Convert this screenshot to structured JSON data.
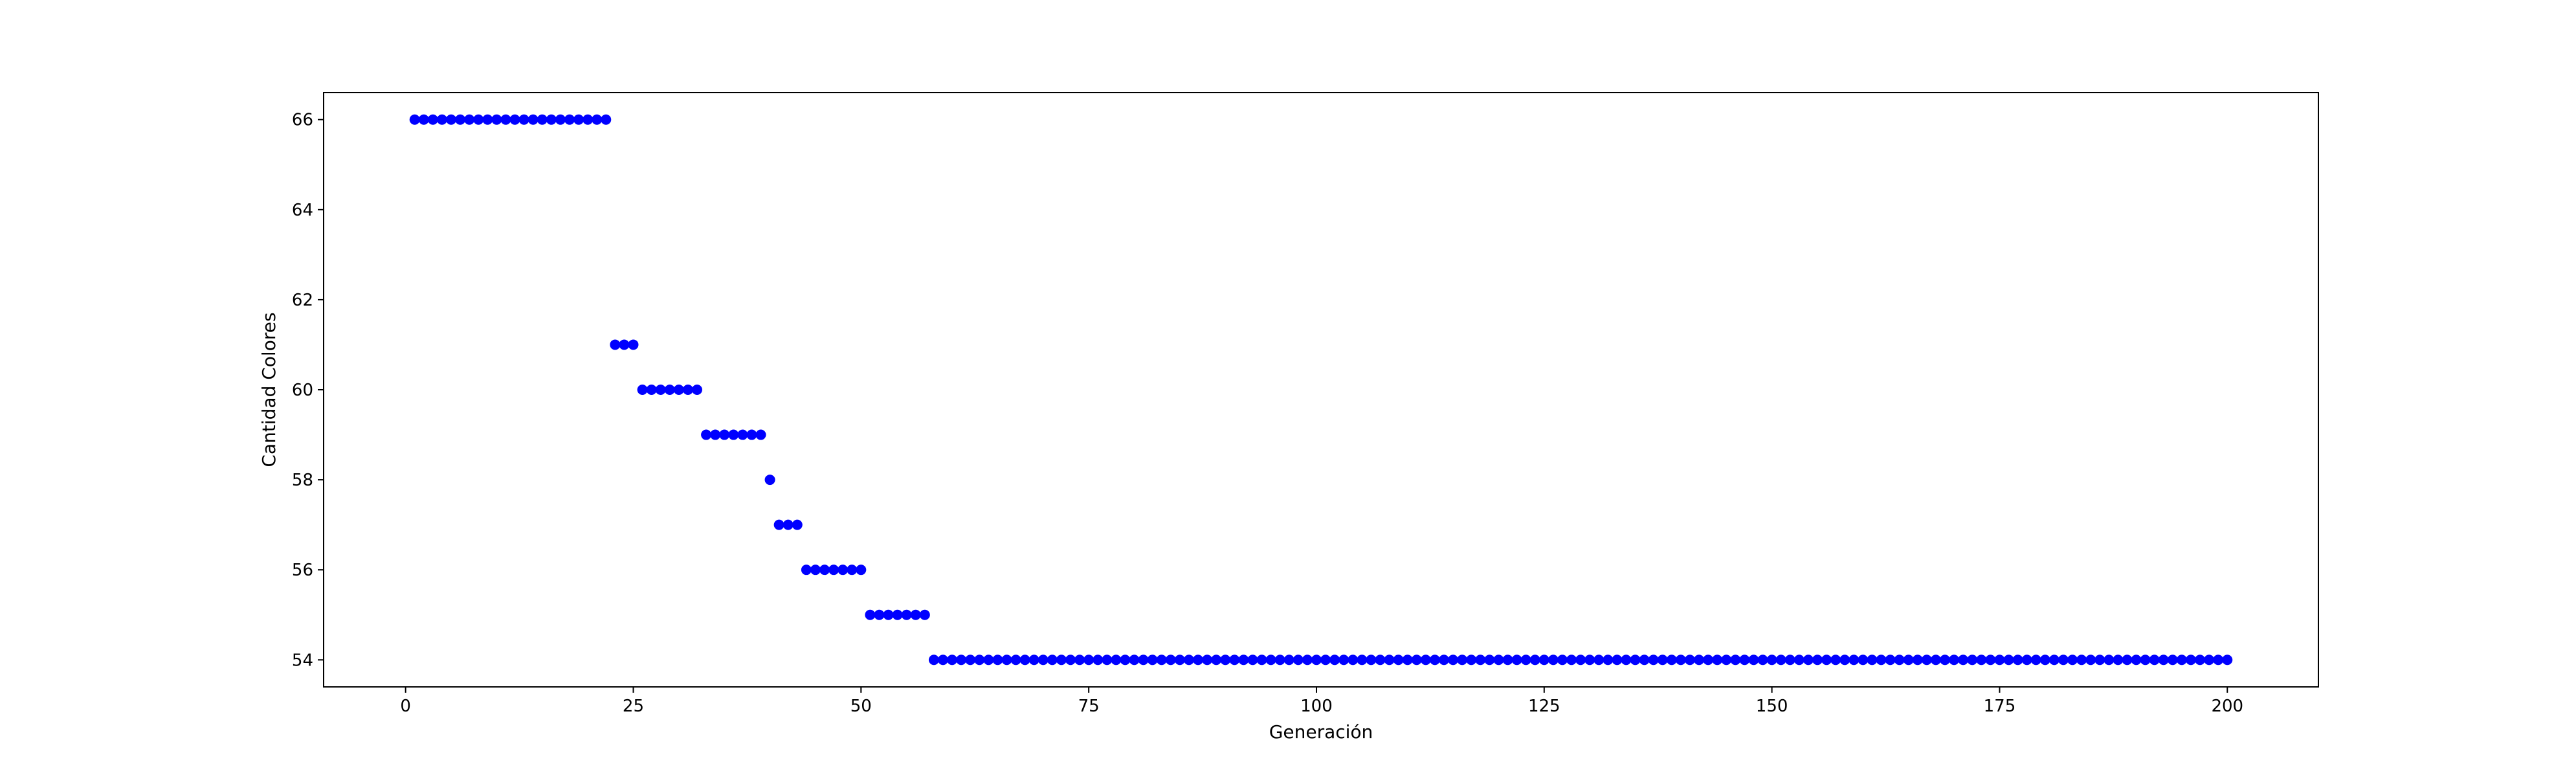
{
  "chart_data": {
    "type": "scatter",
    "title": "",
    "xlabel": "Generación",
    "ylabel": "Cantidad Colores",
    "xlim": [
      -9,
      210
    ],
    "ylim": [
      53.4,
      66.6
    ],
    "xticks": [
      0,
      25,
      50,
      75,
      100,
      125,
      150,
      175,
      200
    ],
    "yticks": [
      54,
      56,
      58,
      60,
      62,
      64,
      66
    ],
    "grid": false,
    "legend": "none",
    "marker_color": "#0000ff",
    "series": [
      {
        "x": [
          1,
          2,
          3,
          4,
          5,
          6,
          7,
          8,
          9,
          10,
          11,
          12,
          13,
          14,
          15,
          16,
          17,
          18,
          19,
          20,
          21,
          22,
          23,
          24,
          25,
          26,
          27,
          28,
          29,
          30,
          31,
          32,
          33,
          34,
          35,
          36,
          37,
          38,
          39,
          40,
          41,
          42,
          43,
          44,
          45,
          46,
          47,
          48,
          49,
          50,
          51,
          52,
          53,
          54,
          55,
          56,
          57,
          58,
          59,
          60,
          61,
          62,
          63,
          64,
          65,
          66,
          67,
          68,
          69,
          70,
          71,
          72,
          73,
          74,
          75,
          76,
          77,
          78,
          79,
          80,
          81,
          82,
          83,
          84,
          85,
          86,
          87,
          88,
          89,
          90,
          91,
          92,
          93,
          94,
          95,
          96,
          97,
          98,
          99,
          100,
          101,
          102,
          103,
          104,
          105,
          106,
          107,
          108,
          109,
          110,
          111,
          112,
          113,
          114,
          115,
          116,
          117,
          118,
          119,
          120,
          121,
          122,
          123,
          124,
          125,
          126,
          127,
          128,
          129,
          130,
          131,
          132,
          133,
          134,
          135,
          136,
          137,
          138,
          139,
          140,
          141,
          142,
          143,
          144,
          145,
          146,
          147,
          148,
          149,
          150,
          151,
          152,
          153,
          154,
          155,
          156,
          157,
          158,
          159,
          160,
          161,
          162,
          163,
          164,
          165,
          166,
          167,
          168,
          169,
          170,
          171,
          172,
          173,
          174,
          175,
          176,
          177,
          178,
          179,
          180,
          181,
          182,
          183,
          184,
          185,
          186,
          187,
          188,
          189,
          190,
          191,
          192,
          193,
          194,
          195,
          196,
          197,
          198,
          199,
          200
        ],
        "y": [
          66,
          66,
          66,
          66,
          66,
          66,
          66,
          66,
          66,
          66,
          66,
          66,
          66,
          66,
          66,
          66,
          66,
          66,
          66,
          66,
          66,
          66,
          61,
          61,
          61,
          60,
          60,
          60,
          60,
          60,
          60,
          60,
          59,
          59,
          59,
          59,
          59,
          59,
          59,
          58,
          57,
          57,
          57,
          56,
          56,
          56,
          56,
          56,
          56,
          56,
          55,
          55,
          55,
          55,
          55,
          55,
          55,
          54,
          54,
          54,
          54,
          54,
          54,
          54,
          54,
          54,
          54,
          54,
          54,
          54,
          54,
          54,
          54,
          54,
          54,
          54,
          54,
          54,
          54,
          54,
          54,
          54,
          54,
          54,
          54,
          54,
          54,
          54,
          54,
          54,
          54,
          54,
          54,
          54,
          54,
          54,
          54,
          54,
          54,
          54,
          54,
          54,
          54,
          54,
          54,
          54,
          54,
          54,
          54,
          54,
          54,
          54,
          54,
          54,
          54,
          54,
          54,
          54,
          54,
          54,
          54,
          54,
          54,
          54,
          54,
          54,
          54,
          54,
          54,
          54,
          54,
          54,
          54,
          54,
          54,
          54,
          54,
          54,
          54,
          54,
          54,
          54,
          54,
          54,
          54,
          54,
          54,
          54,
          54,
          54,
          54,
          54,
          54,
          54,
          54,
          54,
          54,
          54,
          54,
          54,
          54,
          54,
          54,
          54,
          54,
          54,
          54,
          54,
          54,
          54,
          54,
          54,
          54,
          54,
          54,
          54,
          54,
          54,
          54,
          54,
          54,
          54,
          54,
          54,
          54,
          54,
          54,
          54,
          54,
          54,
          54,
          54,
          54,
          54,
          54,
          54,
          54,
          54,
          54,
          54
        ]
      }
    ]
  }
}
